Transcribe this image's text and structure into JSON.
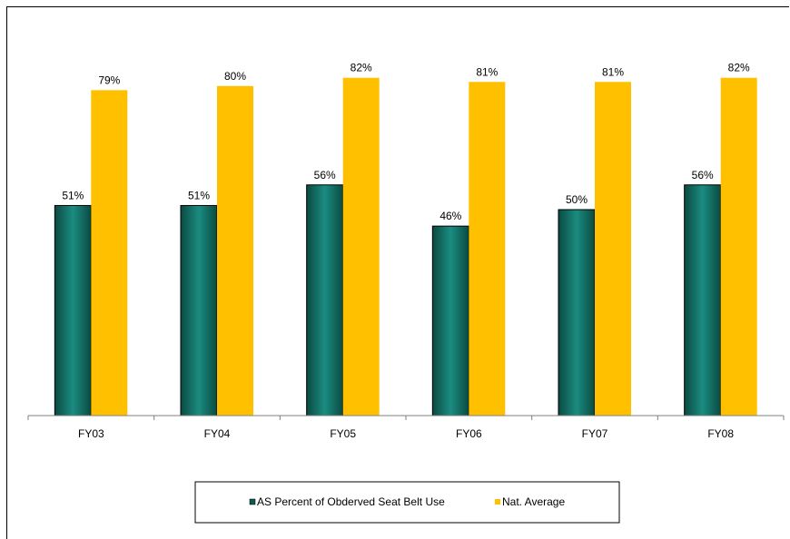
{
  "chart_data": {
    "type": "bar",
    "title": "",
    "xlabel": "",
    "ylabel": "",
    "categories": [
      "FY03",
      "FY04",
      "FY05",
      "FY06",
      "FY07",
      "FY08"
    ],
    "series": [
      {
        "name": "AS Percent of Obderved Seat Belt Use",
        "values": [
          51,
          51,
          56,
          46,
          50,
          56
        ],
        "labels": [
          "51%",
          "51%",
          "56%",
          "46%",
          "50%",
          "56%"
        ],
        "color": "#0b5b52"
      },
      {
        "name": "Nat. Average",
        "values": [
          79,
          80,
          82,
          81,
          81,
          82
        ],
        "labels": [
          "79%",
          "80%",
          "82%",
          "81%",
          "81%",
          "82%"
        ],
        "color": "#ffc000"
      }
    ],
    "ylim": [
      0,
      100
    ],
    "y_axis_visible": false,
    "grid": false,
    "legend_position": "bottom"
  }
}
